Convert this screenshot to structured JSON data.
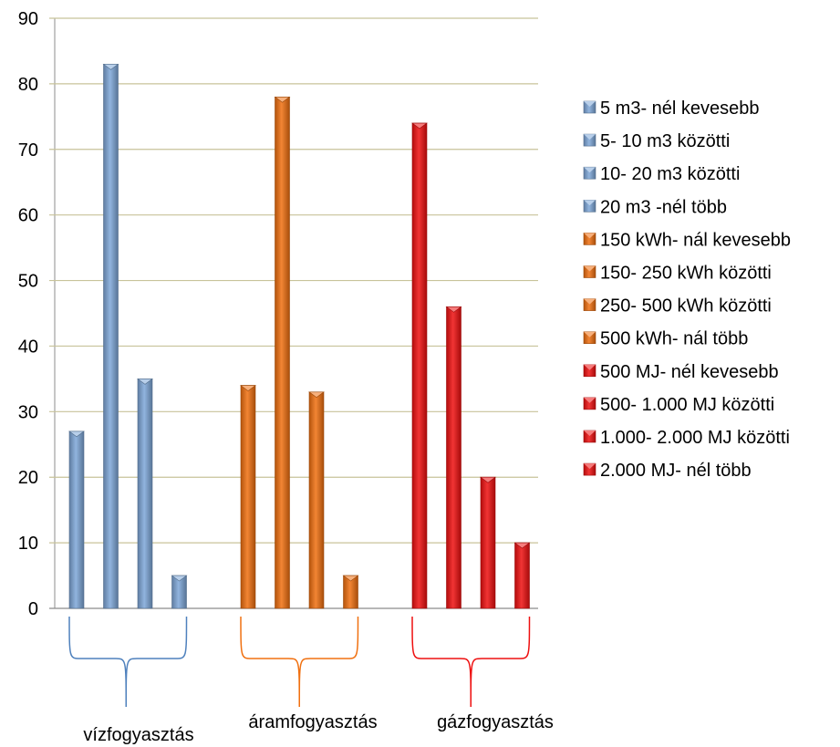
{
  "chart_data": {
    "type": "bar",
    "title": "",
    "xlabel": "",
    "ylabel": "",
    "ylim": [
      0,
      90
    ],
    "yticks": [
      "0",
      "10",
      "20",
      "30",
      "40",
      "50",
      "60",
      "70",
      "80",
      "90"
    ],
    "grid": true,
    "legend_position": "right",
    "groups": [
      {
        "label": "vízfogyasztás",
        "color": "#7ea7d8",
        "bars": [
          {
            "name": "5 m3- nél kevesebb",
            "value": 27
          },
          {
            "name": "5- 10 m3 közötti",
            "value": 83
          },
          {
            "name": "10- 20 m3 közötti",
            "value": 35
          },
          {
            "name": "20 m3 -nél több",
            "value": 5
          }
        ]
      },
      {
        "label": "áramfogyasztás",
        "color": "#f07010",
        "bars": [
          {
            "name": "150 kWh- nál kevesebb",
            "value": 34
          },
          {
            "name": "150- 250 kWh közötti",
            "value": 78
          },
          {
            "name": "250- 500 kWh közötti",
            "value": 33
          },
          {
            "name": "500 kWh- nál több",
            "value": 5
          }
        ]
      },
      {
        "label": "gázfogyasztás",
        "color": "#ee1010",
        "bars": [
          {
            "name": "500 MJ- nél kevesebb",
            "value": 74
          },
          {
            "name": "500- 1.000 MJ közötti",
            "value": 46
          },
          {
            "name": "1.000- 2.000 MJ közötti",
            "value": 20
          },
          {
            "name": "2.000 MJ- nél több",
            "value": 10
          }
        ]
      }
    ]
  }
}
